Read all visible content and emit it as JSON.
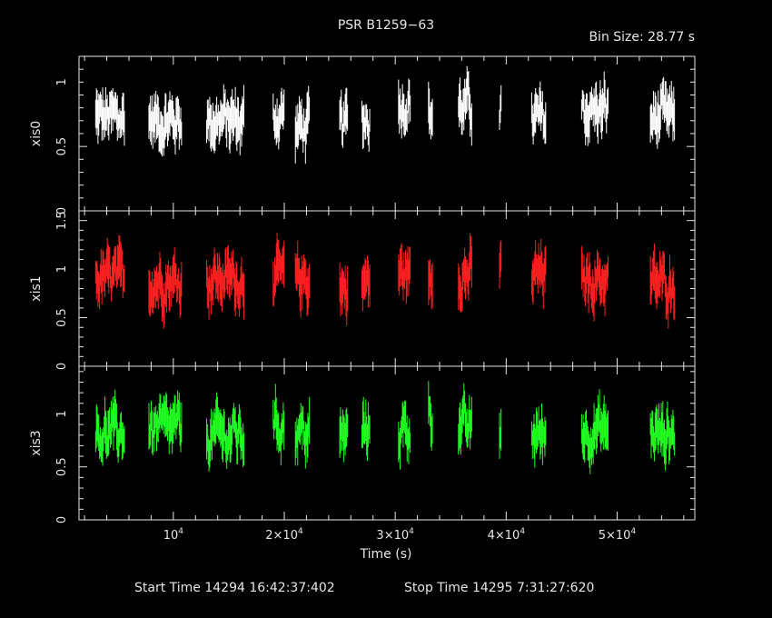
{
  "header": {
    "title": "PSR B1259−63",
    "bin_size": "Bin Size: 28.77 s"
  },
  "footer": {
    "start_time": "Start Time 14294 16:42:37:402",
    "stop_time": "Stop Time 14295  7:31:27:620"
  },
  "colors": {
    "xis0": "#ffffff",
    "xis1": "#ff2020",
    "xis3": "#22ff22",
    "axis": "#e6e6e6"
  },
  "chart_data": {
    "type": "scatter",
    "title": "PSR B1259−63",
    "xlabel": "Time (s)",
    "xlim": [
      1500,
      57000
    ],
    "x_ticks": [
      {
        "value": 10000,
        "mantissa": "10",
        "exp": "4"
      },
      {
        "value": 20000,
        "mantissa": "2×10",
        "exp": "4"
      },
      {
        "value": 30000,
        "mantissa": "3×10",
        "exp": "4"
      },
      {
        "value": 40000,
        "mantissa": "4×10",
        "exp": "4"
      },
      {
        "value": 50000,
        "mantissa": "5×10",
        "exp": "4"
      }
    ],
    "segments": [
      [
        3000,
        5600
      ],
      [
        7800,
        10800
      ],
      [
        13000,
        16400
      ],
      [
        19000,
        20000
      ],
      [
        21000,
        22300
      ],
      [
        25000,
        25700
      ],
      [
        27000,
        27700
      ],
      [
        30300,
        31400
      ],
      [
        33000,
        33400
      ],
      [
        35700,
        36900
      ],
      [
        39400,
        39600
      ],
      [
        42300,
        43600
      ],
      [
        46800,
        49200
      ],
      [
        53000,
        55200
      ]
    ],
    "panels": [
      {
        "name": "xis0",
        "ylabel": "xis0",
        "ylim": [
          0.0,
          1.2
        ],
        "y_ticks": [
          {
            "value": 0.5,
            "label": "0.5"
          },
          {
            "value": 1.0,
            "label": "1"
          }
        ],
        "base": 0.72,
        "spread": 0.22,
        "err": 0.13,
        "segment_levels": [
          0.72,
          0.7,
          0.7,
          0.75,
          0.65,
          0.68,
          0.72,
          0.85,
          0.75,
          0.8,
          0.78,
          0.7,
          0.78,
          0.72
        ]
      },
      {
        "name": "xis1",
        "ylabel": "xis1",
        "ylim": [
          0.0,
          1.6
        ],
        "y_ticks": [
          {
            "value": 0.5,
            "label": "0.5"
          },
          {
            "value": 1.0,
            "label": "1"
          },
          {
            "value": 1.5,
            "label": "1.5"
          }
        ],
        "base": 0.9,
        "spread": 0.28,
        "err": 0.18,
        "segment_levels": [
          0.9,
          0.88,
          0.9,
          0.92,
          0.9,
          0.8,
          0.85,
          0.95,
          0.95,
          0.95,
          1.0,
          0.95,
          0.9,
          0.85
        ]
      },
      {
        "name": "xis3",
        "ylabel": "xis3",
        "ylim": [
          0.0,
          1.45
        ],
        "y_ticks": [
          {
            "value": 0.5,
            "label": "0.5"
          },
          {
            "value": 1.0,
            "label": "1"
          }
        ],
        "base": 0.82,
        "spread": 0.26,
        "err": 0.16,
        "segment_levels": [
          0.82,
          0.85,
          0.8,
          0.9,
          0.82,
          0.8,
          0.85,
          0.85,
          1.0,
          0.85,
          0.85,
          0.8,
          0.85,
          0.82
        ]
      }
    ]
  }
}
